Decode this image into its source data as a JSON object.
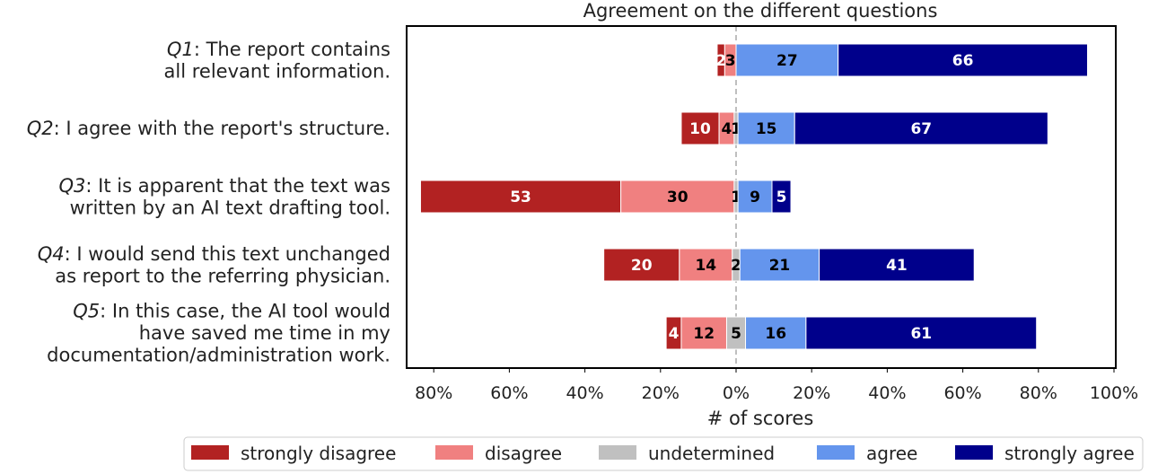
{
  "chart_data": {
    "type": "bar",
    "orientation": "horizontal-diverging-stacked",
    "title": "Agreement on the different questions",
    "xlabel": "# of scores",
    "ylabel": "",
    "xlim": [
      -85,
      100
    ],
    "x_ticks": [
      -80,
      -60,
      -40,
      -20,
      0,
      20,
      40,
      60,
      80,
      100
    ],
    "x_tick_labels": [
      "80%",
      "60%",
      "40%",
      "20%",
      "0%",
      "20%",
      "40%",
      "60%",
      "80%",
      "100%"
    ],
    "grid": false,
    "center_line": "dashed at 0%",
    "legend_position": "bottom",
    "categories": [
      {
        "prefix": "Q1",
        "lines": [
          ": The report contains",
          "all relevant information."
        ]
      },
      {
        "prefix": "Q2",
        "lines": [
          ": I agree with the report's structure."
        ]
      },
      {
        "prefix": "Q3",
        "lines": [
          ": It is apparent that the text was",
          "written by an AI text drafting tool."
        ]
      },
      {
        "prefix": "Q4",
        "lines": [
          ": I would send this text unchanged",
          "as report to the referring physician."
        ]
      },
      {
        "prefix": "Q5",
        "lines": [
          ": In this case, the AI tool would",
          "have saved me time in my",
          "documentation/administration work."
        ]
      }
    ],
    "series": [
      {
        "name": "strongly disagree",
        "color": "#b22222",
        "text_color": "#ffffff",
        "values": [
          2,
          10,
          53,
          20,
          4
        ]
      },
      {
        "name": "disagree",
        "color": "#f08080",
        "text_color": "#000000",
        "values": [
          3,
          4,
          30,
          14,
          12
        ]
      },
      {
        "name": "undetermined",
        "color": "#c0c0c0",
        "text_color": "#000000",
        "values": [
          0,
          1,
          1,
          2,
          5
        ]
      },
      {
        "name": "agree",
        "color": "#6495ed",
        "text_color": "#000000",
        "values": [
          27,
          15,
          9,
          21,
          16
        ]
      },
      {
        "name": "strongly agree",
        "color": "#00008b",
        "text_color": "#ffffff",
        "values": [
          66,
          67,
          5,
          41,
          61
        ]
      }
    ]
  }
}
